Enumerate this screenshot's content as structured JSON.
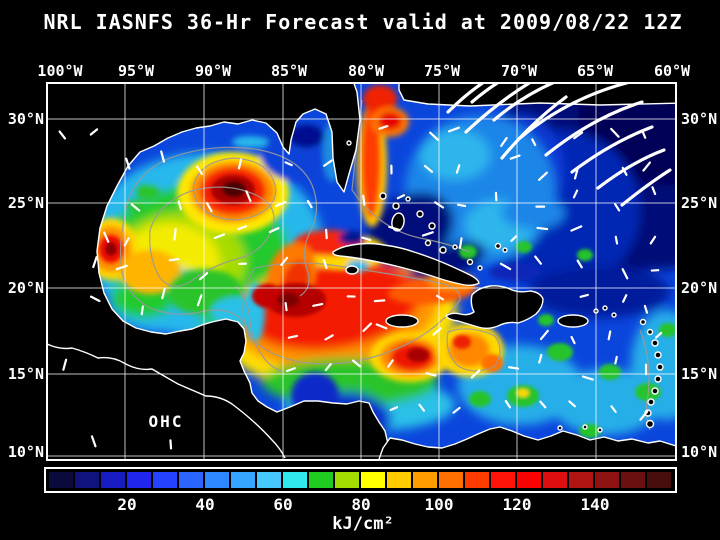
{
  "title": "NRL IASNFS  36-Hr Forecast valid at 2009/08/22 12Z",
  "map": {
    "label": "OHC",
    "lon_labels": [
      "100°W",
      "95°W",
      "90°W",
      "85°W",
      "80°W",
      "75°W",
      "70°W",
      "65°W",
      "60°W"
    ],
    "lat_labels": [
      "30°N",
      "25°N",
      "20°N",
      "15°N",
      "10°N"
    ]
  },
  "colorbar": {
    "unit": "kJ/cm²",
    "tick_labels": [
      "20",
      "40",
      "60",
      "80",
      "100",
      "120",
      "140"
    ],
    "cell_colors": [
      "#0a0a3c",
      "#10127e",
      "#181cc0",
      "#2026ee",
      "#2442ff",
      "#2c64ff",
      "#2e88ff",
      "#35a6ff",
      "#46c8ff",
      "#30e8ee",
      "#1fcc1f",
      "#a2dc00",
      "#ffff00",
      "#ffcc00",
      "#ff9c00",
      "#ff7000",
      "#ff3c00",
      "#ff1408",
      "#fa0202",
      "#dc0e0e",
      "#b21414",
      "#8e1212",
      "#6a1010",
      "#470c0c"
    ]
  },
  "colors": {
    "background": "#000000",
    "text": "#ffffff",
    "grid": "#ffffff",
    "contour": "#9a9a9a",
    "coast": "#ffffff",
    "land": "#000000",
    "ocean_base": "#0b46dc"
  }
}
